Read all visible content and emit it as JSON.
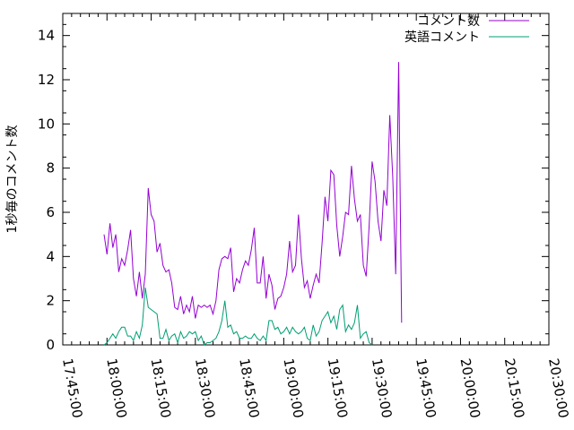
{
  "chart_data": {
    "type": "line",
    "title": "",
    "xlabel": "",
    "ylabel": "1秒毎のコメント数",
    "ylim": [
      0,
      15
    ],
    "yticks": [
      "0",
      "2",
      "4",
      "6",
      "8",
      "10",
      "12",
      "14"
    ],
    "xlim": [
      "17:45:00",
      "20:30:00"
    ],
    "xticks": [
      "17:45:00",
      "18:00:00",
      "18:15:00",
      "18:30:00",
      "18:45:00",
      "19:00:00",
      "19:15:00",
      "19:30:00",
      "19:45:00",
      "20:00:00",
      "20:15:00",
      "20:30:00"
    ],
    "legend_position": "top-right",
    "grid": false,
    "series": [
      {
        "name": "コメント数",
        "color": "#9400d3",
        "points": [
          [
            "17:59:00",
            5.0
          ],
          [
            "18:00:00",
            4.1
          ],
          [
            "18:01:00",
            5.5
          ],
          [
            "18:02:00",
            4.4
          ],
          [
            "18:03:00",
            5.0
          ],
          [
            "18:04:00",
            3.3
          ],
          [
            "18:05:00",
            3.9
          ],
          [
            "18:06:00",
            3.6
          ],
          [
            "18:07:00",
            4.3
          ],
          [
            "18:08:00",
            5.2
          ],
          [
            "18:09:00",
            3.0
          ],
          [
            "18:10:00",
            2.2
          ],
          [
            "18:11:00",
            3.3
          ],
          [
            "18:12:00",
            2.1
          ],
          [
            "18:13:00",
            3.2
          ],
          [
            "18:14:00",
            7.1
          ],
          [
            "18:15:00",
            5.9
          ],
          [
            "18:16:00",
            5.6
          ],
          [
            "18:17:00",
            4.2
          ],
          [
            "18:18:00",
            4.6
          ],
          [
            "18:19:00",
            3.6
          ],
          [
            "18:20:00",
            3.3
          ],
          [
            "18:21:00",
            3.4
          ],
          [
            "18:22:00",
            2.8
          ],
          [
            "18:23:00",
            1.7
          ],
          [
            "18:24:00",
            1.6
          ],
          [
            "18:25:00",
            2.2
          ],
          [
            "18:26:00",
            1.4
          ],
          [
            "18:27:00",
            1.8
          ],
          [
            "18:28:00",
            1.5
          ],
          [
            "18:29:00",
            2.2
          ],
          [
            "18:30:00",
            1.2
          ],
          [
            "18:31:00",
            1.8
          ],
          [
            "18:32:00",
            1.7
          ],
          [
            "18:33:00",
            1.8
          ],
          [
            "18:34:00",
            1.7
          ],
          [
            "18:35:00",
            1.8
          ],
          [
            "18:36:00",
            1.4
          ],
          [
            "18:37:00",
            2.0
          ],
          [
            "18:38:00",
            3.4
          ],
          [
            "18:39:00",
            3.9
          ],
          [
            "18:40:00",
            4.0
          ],
          [
            "18:41:00",
            3.9
          ],
          [
            "18:42:00",
            4.4
          ],
          [
            "18:43:00",
            2.4
          ],
          [
            "18:44:00",
            3.0
          ],
          [
            "18:45:00",
            2.8
          ],
          [
            "18:46:00",
            3.4
          ],
          [
            "18:47:00",
            3.8
          ],
          [
            "18:48:00",
            3.6
          ],
          [
            "18:49:00",
            4.3
          ],
          [
            "18:50:00",
            5.3
          ],
          [
            "18:51:00",
            2.8
          ],
          [
            "18:52:00",
            2.8
          ],
          [
            "18:53:00",
            4.0
          ],
          [
            "18:54:00",
            2.1
          ],
          [
            "18:55:00",
            3.2
          ],
          [
            "18:56:00",
            2.7
          ],
          [
            "18:57:00",
            1.6
          ],
          [
            "18:58:00",
            2.1
          ],
          [
            "18:59:00",
            2.2
          ],
          [
            "19:00:00",
            2.6
          ],
          [
            "19:01:00",
            3.2
          ],
          [
            "19:02:00",
            4.7
          ],
          [
            "19:03:00",
            3.3
          ],
          [
            "19:04:00",
            3.6
          ],
          [
            "19:05:00",
            5.9
          ],
          [
            "19:06:00",
            3.9
          ],
          [
            "19:07:00",
            2.6
          ],
          [
            "19:08:00",
            2.9
          ],
          [
            "19:09:00",
            2.1
          ],
          [
            "19:10:00",
            2.7
          ],
          [
            "19:11:00",
            3.2
          ],
          [
            "19:12:00",
            2.8
          ],
          [
            "19:13:00",
            4.6
          ],
          [
            "19:14:00",
            6.7
          ],
          [
            "19:15:00",
            5.6
          ],
          [
            "19:16:00",
            7.9
          ],
          [
            "19:17:00",
            7.7
          ],
          [
            "19:18:00",
            5.4
          ],
          [
            "19:19:00",
            4.0
          ],
          [
            "19:20:00",
            4.9
          ],
          [
            "19:21:00",
            6.0
          ],
          [
            "19:22:00",
            5.9
          ],
          [
            "19:23:00",
            8.1
          ],
          [
            "19:24:00",
            6.6
          ],
          [
            "19:25:00",
            5.6
          ],
          [
            "19:26:00",
            5.9
          ],
          [
            "19:27:00",
            3.6
          ],
          [
            "19:28:00",
            3.1
          ],
          [
            "19:29:00",
            5.4
          ],
          [
            "19:30:00",
            8.3
          ],
          [
            "19:31:00",
            7.4
          ],
          [
            "19:32:00",
            5.6
          ],
          [
            "19:33:00",
            4.7
          ],
          [
            "19:34:00",
            7.0
          ],
          [
            "19:35:00",
            6.3
          ],
          [
            "19:36:00",
            10.4
          ],
          [
            "19:37:00",
            7.6
          ],
          [
            "19:38:00",
            3.2
          ],
          [
            "19:39:00",
            12.8
          ],
          [
            "19:40:00",
            1.0
          ]
        ]
      },
      {
        "name": "英語コメント",
        "color": "#009e73",
        "points": [
          [
            "17:59:00",
            0.0
          ],
          [
            "18:00:00",
            0.1
          ],
          [
            "18:01:00",
            0.3
          ],
          [
            "18:02:00",
            0.5
          ],
          [
            "18:03:00",
            0.3
          ],
          [
            "18:04:00",
            0.6
          ],
          [
            "18:05:00",
            0.8
          ],
          [
            "18:06:00",
            0.8
          ],
          [
            "18:07:00",
            0.4
          ],
          [
            "18:08:00",
            0.4
          ],
          [
            "18:09:00",
            0.2
          ],
          [
            "18:10:00",
            0.6
          ],
          [
            "18:11:00",
            0.3
          ],
          [
            "18:12:00",
            0.9
          ],
          [
            "18:13:00",
            2.6
          ],
          [
            "18:14:00",
            1.7
          ],
          [
            "18:15:00",
            1.6
          ],
          [
            "18:16:00",
            1.5
          ],
          [
            "18:17:00",
            1.4
          ],
          [
            "18:18:00",
            0.3
          ],
          [
            "18:19:00",
            0.3
          ],
          [
            "18:20:00",
            0.7
          ],
          [
            "18:21:00",
            0.2
          ],
          [
            "18:22:00",
            0.4
          ],
          [
            "18:23:00",
            0.5
          ],
          [
            "18:24:00",
            0.1
          ],
          [
            "18:25:00",
            0.6
          ],
          [
            "18:26:00",
            0.3
          ],
          [
            "18:27:00",
            0.4
          ],
          [
            "18:28:00",
            0.6
          ],
          [
            "18:29:00",
            0.5
          ],
          [
            "18:30:00",
            0.6
          ],
          [
            "18:31:00",
            0.2
          ],
          [
            "18:32:00",
            0.4
          ],
          [
            "18:33:00",
            0.0
          ],
          [
            "18:34:00",
            0.1
          ],
          [
            "18:35:00",
            0.1
          ],
          [
            "18:36:00",
            0.2
          ],
          [
            "18:37:00",
            0.3
          ],
          [
            "18:38:00",
            0.6
          ],
          [
            "18:39:00",
            1.1
          ],
          [
            "18:40:00",
            2.0
          ],
          [
            "18:41:00",
            0.8
          ],
          [
            "18:42:00",
            0.9
          ],
          [
            "18:43:00",
            0.5
          ],
          [
            "18:44:00",
            0.6
          ],
          [
            "18:45:00",
            0.3
          ],
          [
            "18:46:00",
            0.3
          ],
          [
            "18:47:00",
            0.4
          ],
          [
            "18:48:00",
            0.3
          ],
          [
            "18:49:00",
            0.3
          ],
          [
            "18:50:00",
            0.5
          ],
          [
            "18:51:00",
            0.3
          ],
          [
            "18:52:00",
            0.2
          ],
          [
            "18:53:00",
            0.4
          ],
          [
            "18:54:00",
            0.2
          ],
          [
            "18:55:00",
            1.1
          ],
          [
            "18:56:00",
            1.1
          ],
          [
            "18:57:00",
            0.7
          ],
          [
            "18:58:00",
            0.8
          ],
          [
            "18:59:00",
            0.5
          ],
          [
            "19:00:00",
            0.6
          ],
          [
            "19:01:00",
            0.8
          ],
          [
            "19:02:00",
            0.5
          ],
          [
            "19:03:00",
            0.8
          ],
          [
            "19:04:00",
            0.6
          ],
          [
            "19:05:00",
            0.5
          ],
          [
            "19:06:00",
            0.6
          ],
          [
            "19:07:00",
            0.8
          ],
          [
            "19:08:00",
            0.3
          ],
          [
            "19:09:00",
            0.2
          ],
          [
            "19:10:00",
            0.9
          ],
          [
            "19:11:00",
            0.4
          ],
          [
            "19:12:00",
            0.6
          ],
          [
            "19:13:00",
            1.1
          ],
          [
            "19:14:00",
            1.3
          ],
          [
            "19:15:00",
            1.5
          ],
          [
            "19:16:00",
            1.0
          ],
          [
            "19:17:00",
            1.3
          ],
          [
            "19:18:00",
            0.7
          ],
          [
            "19:19:00",
            1.6
          ],
          [
            "19:20:00",
            1.8
          ],
          [
            "19:21:00",
            0.6
          ],
          [
            "19:22:00",
            0.9
          ],
          [
            "19:23:00",
            0.7
          ],
          [
            "19:24:00",
            1.0
          ],
          [
            "19:25:00",
            1.8
          ],
          [
            "19:26:00",
            0.3
          ],
          [
            "19:27:00",
            0.5
          ],
          [
            "19:28:00",
            0.6
          ],
          [
            "19:29:00",
            0.1
          ],
          [
            "19:30:00",
            0.0
          ]
        ]
      }
    ]
  }
}
